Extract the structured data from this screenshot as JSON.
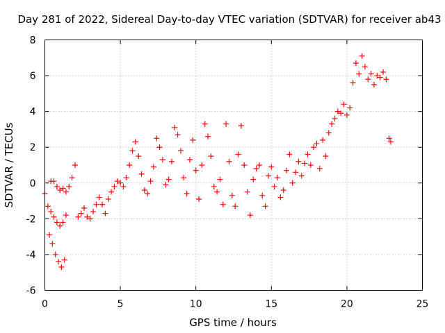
{
  "chart_data": {
    "type": "scatter",
    "title": "Day 281 of 2022, Sidereal Day-to-day VTEC variation (SDTVAR) for receiver ab43",
    "xlabel": "GPS time / hours",
    "ylabel": "SDTVAR / TECUs",
    "xlim": [
      0,
      25
    ],
    "ylim": [
      -6,
      8
    ],
    "x_ticks": [
      0,
      5,
      10,
      15,
      20,
      25
    ],
    "y_ticks": [
      -6,
      -4,
      -2,
      0,
      2,
      4,
      6,
      8
    ],
    "x_tick_labels": [
      "0",
      "5",
      "10",
      "15",
      "20",
      "25"
    ],
    "y_tick_labels": [
      "-6",
      "-4",
      "-2",
      "0",
      "2",
      "4",
      "6",
      "8"
    ],
    "grid": true,
    "marker": "plus",
    "color": "#ff0000",
    "series": [
      {
        "name": "SDTVAR",
        "x": [
          0.0,
          0.2,
          0.4,
          0.6,
          0.8,
          1.0,
          1.2,
          1.4,
          0.3,
          0.5,
          0.7,
          0.9,
          1.1,
          1.3,
          0.4,
          0.6,
          0.8,
          1.0,
          1.2,
          1.4,
          1.6,
          1.8,
          2.0,
          2.2,
          2.4,
          2.6,
          2.8,
          3.0,
          3.2,
          3.4,
          3.6,
          3.8,
          4.0,
          4.2,
          4.4,
          4.6,
          4.8,
          5.0,
          5.2,
          5.4,
          5.6,
          5.8,
          6.0,
          6.2,
          6.4,
          6.6,
          6.8,
          7.0,
          7.2,
          7.4,
          7.6,
          7.8,
          8.0,
          8.2,
          8.4,
          8.6,
          8.8,
          9.0,
          9.2,
          9.4,
          9.6,
          9.8,
          10.0,
          10.2,
          10.4,
          10.6,
          10.8,
          11.0,
          11.2,
          11.4,
          11.6,
          11.8,
          12.0,
          12.2,
          12.4,
          12.6,
          12.8,
          13.0,
          13.2,
          13.4,
          13.6,
          13.8,
          14.0,
          14.2,
          14.4,
          14.6,
          14.8,
          15.0,
          15.2,
          15.4,
          15.6,
          15.8,
          16.0,
          16.2,
          16.4,
          16.6,
          16.8,
          17.0,
          17.2,
          17.4,
          17.6,
          17.8,
          18.0,
          18.2,
          18.4,
          18.6,
          18.8,
          19.0,
          19.2,
          19.4,
          19.6,
          19.8,
          20.0,
          20.2,
          20.4,
          20.6,
          20.8,
          21.0,
          21.2,
          21.4,
          21.6,
          21.8,
          22.0,
          22.2,
          22.4,
          22.6,
          22.8,
          22.9
        ],
        "y": [
          -0.6,
          -1.3,
          -1.6,
          -1.9,
          -2.2,
          -2.4,
          -2.2,
          -1.8,
          -2.9,
          -3.4,
          -4.0,
          -4.4,
          -4.7,
          -4.3,
          0.1,
          0.1,
          -0.2,
          -0.4,
          -0.3,
          -0.5,
          -0.2,
          0.3,
          1.0,
          -1.9,
          -1.7,
          -1.4,
          -1.9,
          -2.0,
          -1.6,
          -1.2,
          -0.8,
          -1.2,
          -1.7,
          -0.9,
          -0.5,
          -0.2,
          0.1,
          0.0,
          -0.2,
          0.3,
          1.0,
          1.8,
          2.3,
          1.5,
          0.5,
          -0.4,
          -0.6,
          0.1,
          0.9,
          2.5,
          2.0,
          1.3,
          -0.1,
          0.2,
          1.2,
          3.1,
          2.7,
          1.8,
          0.3,
          -0.6,
          1.3,
          2.4,
          0.7,
          -0.9,
          1.0,
          3.3,
          2.6,
          1.5,
          -0.2,
          -0.5,
          0.2,
          -1.2,
          3.3,
          1.2,
          -0.7,
          -1.3,
          1.6,
          3.2,
          1.0,
          -0.5,
          -1.8,
          0.2,
          0.8,
          1.0,
          -0.7,
          -1.3,
          0.4,
          0.9,
          -0.2,
          0.3,
          -0.8,
          -0.4,
          0.7,
          1.6,
          0.0,
          0.6,
          1.2,
          0.4,
          1.1,
          1.6,
          1.0,
          2.0,
          2.2,
          0.8,
          2.4,
          1.5,
          2.8,
          3.3,
          3.6,
          4.0,
          3.9,
          4.4,
          3.8,
          4.2,
          5.6,
          6.7,
          6.1,
          7.1,
          6.5,
          5.8,
          6.1,
          5.5,
          6.0,
          5.9,
          6.2,
          5.8,
          2.5,
          2.3
        ]
      }
    ]
  }
}
